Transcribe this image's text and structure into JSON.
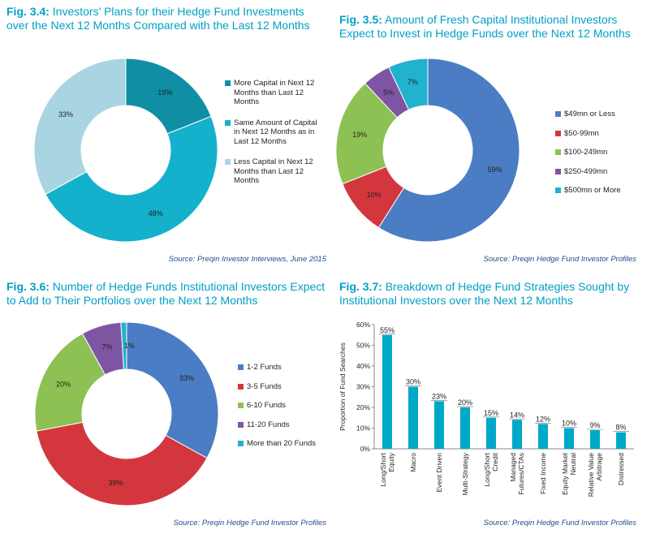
{
  "colors": {
    "title": "#00a0c6",
    "source": "#1f4e8c",
    "bar": "#00a8c8"
  },
  "figs": {
    "f34": {
      "num": "Fig. 3.4:",
      "title": "Investors’ Plans for their Hedge Fund Investments over the Next 12 Months Compared with the Last 12 Months",
      "source": "Source: Preqin Investor Interviews, June 2015"
    },
    "f35": {
      "num": "Fig. 3.5:",
      "title": "Amount of Fresh Capital Institutional Investors Expect to Invest in Hedge Funds over the Next 12 Months",
      "source": "Source: Preqin Hedge Fund Investor Profiles"
    },
    "f36": {
      "num": "Fig. 3.6:",
      "title": "Number of Hedge Funds Institutional Investors Expect to Add to Their Portfolios over the Next 12 Months",
      "source": "Source: Preqin Hedge Fund Investor Profiles"
    },
    "f37": {
      "num": "Fig. 3.7:",
      "title": "Breakdown of Hedge Fund Strategies Sought by Institutional Investors over the Next 12 Months",
      "source": "Source: Preqin Hedge Fund Investor Profiles"
    }
  },
  "chart_data": [
    {
      "type": "pie",
      "donut": true,
      "slices": [
        {
          "label": "More Capital in Next 12 Months than Last 12 Months",
          "value": 19,
          "display": "19%",
          "color": "#0f8ea4"
        },
        {
          "label": "Same Amount of Capital in Next 12 Months as in Last 12 Months",
          "value": 48,
          "display": "48%",
          "color": "#14b1cc"
        },
        {
          "label": "Less Capital in Next 12 Months than Last 12 Months",
          "value": 33,
          "display": "33%",
          "color": "#a9d5e2"
        }
      ],
      "legend": "right"
    },
    {
      "type": "pie",
      "donut": true,
      "slices": [
        {
          "label": "$49mn or Less",
          "value": 59,
          "display": "59%",
          "color": "#4a7dc4"
        },
        {
          "label": "$50-99mn",
          "value": 10,
          "display": "10%",
          "color": "#d3373d"
        },
        {
          "label": "$100-249mn",
          "value": 19,
          "display": "19%",
          "color": "#8dc153"
        },
        {
          "label": "$250-499mn",
          "value": 5,
          "display": "5%",
          "color": "#7e55a3"
        },
        {
          "label": "$500mn or More",
          "value": 7,
          "display": "7%",
          "color": "#21b2ce"
        }
      ],
      "legend": "right"
    },
    {
      "type": "pie",
      "donut": true,
      "slices": [
        {
          "label": "1-2 Funds",
          "value": 33,
          "display": "33%",
          "color": "#4a7dc4"
        },
        {
          "label": "3-5 Funds",
          "value": 39,
          "display": "39%",
          "color": "#d3373d"
        },
        {
          "label": "6-10 Funds",
          "value": 20,
          "display": "20%",
          "color": "#8dc153"
        },
        {
          "label": "11-20 Funds",
          "value": 7,
          "display": "7%",
          "color": "#7e55a3"
        },
        {
          "label": "More than 20 Funds",
          "value": 1,
          "display": "1%",
          "color": "#21b2ce"
        }
      ],
      "legend": "right"
    },
    {
      "type": "bar",
      "categories": [
        "Long/Short Equity",
        "Macro",
        "Event Driven",
        "Multi-Strategy",
        "Long/Short Credit",
        "Managed Futures/CTAs",
        "Fixed Income",
        "Equity Market Neutral",
        "Relative Value Arbitrage",
        "Distressed"
      ],
      "values": [
        55,
        30,
        23,
        20,
        15,
        14,
        12,
        10,
        9,
        8
      ],
      "labels": [
        "55%",
        "30%",
        "23%",
        "20%",
        "15%",
        "14%",
        "12%",
        "10%",
        "9%",
        "8%"
      ],
      "ylabel": "Proportion of Fund Searches",
      "yticks": [
        "0%",
        "10%",
        "20%",
        "30%",
        "40%",
        "50%",
        "60%"
      ],
      "ylim": [
        0,
        60
      ],
      "grid": false
    }
  ]
}
